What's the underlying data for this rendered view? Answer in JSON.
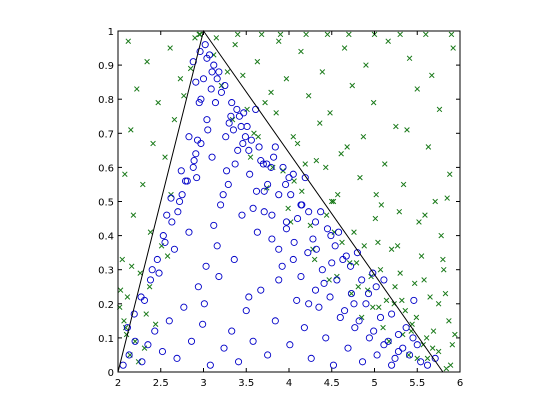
{
  "chart_data": {
    "type": "scatter",
    "title": "",
    "xlabel": "",
    "ylabel": "",
    "xlim": [
      2,
      6
    ],
    "ylim": [
      0,
      1
    ],
    "grid": false,
    "legend": "none",
    "x_ticks": [
      "2",
      "2.5",
      "3",
      "3.5",
      "4",
      "4.5",
      "5",
      "5.5",
      "6"
    ],
    "y_ticks": [
      "0",
      "0.1",
      "0.2",
      "0.3",
      "0.4",
      "0.5",
      "0.6",
      "0.7",
      "0.8",
      "0.9",
      "1"
    ],
    "x_tick_values": [
      2,
      2.5,
      3,
      3.5,
      4,
      4.5,
      5,
      5.5,
      6
    ],
    "y_tick_values": [
      0,
      0.1,
      0.2,
      0.3,
      0.4,
      0.5,
      0.6,
      0.7,
      0.8,
      0.9,
      1
    ],
    "boundary": {
      "color": "#000000",
      "x": [
        2,
        3,
        5.8
      ],
      "y": [
        0,
        1,
        0
      ]
    },
    "series": [
      {
        "marker": "x",
        "color": "#1a7a1a",
        "region": "outside triangle",
        "x": [
          2.12,
          2.34,
          2.61,
          2.85,
          2.22,
          2.47,
          2.73,
          2.15,
          2.41,
          2.66,
          2.08,
          2.29,
          2.55,
          2.18,
          2.38,
          2.9,
          3.12,
          3.37,
          3.63,
          3.88,
          4.14,
          4.39,
          4.65,
          4.9,
          5.16,
          5.41,
          5.67,
          5.92,
          3.21,
          3.46,
          3.72,
          3.97,
          4.23,
          4.48,
          4.74,
          4.99,
          5.25,
          5.5,
          5.76,
          3.34,
          3.59,
          3.85,
          4.1,
          4.36,
          4.61,
          4.87,
          5.12,
          5.38,
          5.63,
          5.88,
          3.55,
          3.81,
          4.06,
          4.32,
          4.57,
          4.83,
          5.08,
          5.34,
          5.59,
          5.85,
          3.74,
          3.99,
          4.25,
          4.5,
          4.76,
          5.01,
          5.27,
          5.52,
          5.78,
          4.02,
          4.28,
          4.53,
          4.79,
          5.04,
          5.3,
          5.55,
          5.81,
          4.3,
          4.56,
          4.81,
          5.07,
          5.32,
          5.58,
          5.83,
          4.47,
          4.73,
          4.98,
          5.24,
          5.49,
          5.75,
          4.85,
          5.1,
          5.36,
          5.61,
          5.87,
          5.17,
          5.43,
          5.68,
          5.94,
          5.5,
          5.75,
          5.89,
          2.05,
          2.26,
          2.51,
          2.77,
          2.11,
          2.37,
          2.62,
          2.09,
          2.33,
          2.58,
          2.2,
          2.44,
          2.14,
          2.31,
          2.03,
          2.24,
          2.07,
          2.16,
          2.02,
          2.1,
          2.96,
          3.28,
          3.51,
          3.79,
          4.05,
          4.43,
          4.68,
          5.02,
          5.29,
          5.71,
          3.64,
          3.93,
          4.19,
          4.52,
          4.88,
          5.2,
          5.47,
          5.8,
          4.15,
          4.44,
          4.71,
          4.96,
          5.23,
          5.65,
          4.62,
          4.92,
          5.14,
          5.44,
          5.69,
          5.05,
          5.33,
          5.57,
          5.91,
          5.4,
          5.62,
          5.84,
          2.95,
          3.15,
          3.4,
          3.68,
          3.9,
          4.2,
          4.45,
          4.7,
          5.0,
          5.3,
          5.6,
          5.9
        ],
        "y": [
          0.97,
          0.91,
          0.95,
          0.89,
          0.83,
          0.79,
          0.86,
          0.71,
          0.67,
          0.74,
          0.58,
          0.55,
          0.63,
          0.46,
          0.41,
          0.98,
          0.93,
          0.96,
          0.91,
          0.97,
          0.94,
          0.88,
          0.95,
          0.9,
          0.97,
          0.92,
          0.87,
          0.95,
          0.84,
          0.87,
          0.79,
          0.86,
          0.81,
          0.76,
          0.84,
          0.79,
          0.72,
          0.83,
          0.77,
          0.74,
          0.7,
          0.76,
          0.67,
          0.73,
          0.64,
          0.69,
          0.61,
          0.71,
          0.66,
          0.58,
          0.63,
          0.6,
          0.56,
          0.62,
          0.52,
          0.57,
          0.49,
          0.55,
          0.46,
          0.51,
          0.54,
          0.48,
          0.43,
          0.5,
          0.41,
          0.45,
          0.37,
          0.44,
          0.4,
          0.44,
          0.36,
          0.41,
          0.32,
          0.38,
          0.29,
          0.34,
          0.3,
          0.33,
          0.28,
          0.25,
          0.3,
          0.21,
          0.27,
          0.23,
          0.27,
          0.23,
          0.19,
          0.25,
          0.16,
          0.2,
          0.16,
          0.13,
          0.18,
          0.1,
          0.15,
          0.09,
          0.12,
          0.07,
          0.11,
          0.04,
          0.06,
          0.02,
          0.33,
          0.29,
          0.37,
          0.81,
          0.22,
          0.25,
          0.52,
          0.13,
          0.17,
          0.34,
          0.09,
          0.14,
          0.05,
          0.07,
          0.24,
          0.03,
          0.15,
          0.31,
          0.19,
          0.11,
          0.99,
          0.88,
          0.77,
          0.82,
          0.69,
          0.6,
          0.66,
          0.52,
          0.47,
          0.5,
          0.69,
          0.59,
          0.61,
          0.5,
          0.37,
          0.36,
          0.26,
          0.33,
          0.53,
          0.46,
          0.32,
          0.28,
          0.2,
          0.22,
          0.38,
          0.24,
          0.21,
          0.14,
          0.12,
          0.19,
          0.11,
          0.08,
          0.08,
          0.05,
          0.04,
          0.01,
          0.99,
          0.98,
          0.99,
          0.99,
          0.99,
          0.99,
          0.99,
          0.99,
          0.99,
          0.99,
          0.99,
          0.99
        ]
      },
      {
        "marker": "o",
        "color": "#0000c8",
        "region": "inside triangle",
        "x": [
          2.06,
          2.13,
          2.2,
          2.11,
          2.28,
          2.35,
          2.19,
          2.43,
          2.27,
          2.52,
          2.38,
          2.6,
          2.46,
          2.69,
          2.55,
          2.77,
          2.63,
          2.86,
          2.72,
          2.94,
          2.81,
          2.99,
          2.89,
          3.03,
          2.93,
          2.97,
          3.08,
          3.16,
          3.04,
          3.24,
          3.12,
          3.33,
          3.2,
          3.41,
          3.29,
          3.5,
          3.37,
          3.58,
          3.46,
          3.67,
          3.54,
          3.75,
          3.63,
          3.84,
          3.71,
          3.92,
          3.8,
          4.01,
          3.88,
          4.09,
          3.97,
          4.18,
          4.05,
          4.26,
          4.14,
          4.35,
          4.22,
          4.43,
          4.31,
          4.52,
          4.39,
          4.6,
          4.48,
          4.69,
          4.56,
          4.77,
          4.65,
          4.86,
          4.73,
          4.94,
          4.82,
          5.03,
          4.9,
          5.11,
          4.99,
          5.2,
          5.07,
          5.28,
          5.16,
          5.37,
          5.24,
          5.45,
          5.33,
          5.54,
          5.41,
          5.62,
          5.5,
          5.71,
          2.31,
          2.48,
          2.66,
          2.83,
          3.01,
          3.18,
          3.36,
          3.53,
          3.71,
          3.88,
          4.06,
          4.23,
          4.41,
          4.58,
          4.76,
          4.93,
          5.11,
          5.28,
          5.46,
          2.4,
          2.57,
          2.75,
          2.92,
          3.1,
          3.27,
          3.45,
          3.62,
          3.8,
          3.97,
          4.15,
          4.32,
          4.5,
          4.67,
          4.85,
          5.02,
          5.2,
          2.53,
          2.7,
          2.88,
          3.05,
          3.23,
          3.4,
          3.58,
          3.75,
          3.93,
          4.1,
          4.28,
          4.45,
          4.63,
          4.8,
          4.98,
          2.62,
          2.79,
          2.97,
          3.14,
          3.32,
          3.49,
          3.67,
          3.84,
          4.02,
          4.19,
          4.37,
          4.54,
          4.72,
          2.74,
          2.91,
          3.09,
          3.26,
          3.44,
          3.61,
          3.79,
          3.96,
          4.14,
          4.31,
          4.49,
          2.83,
          3.0,
          3.18,
          3.35,
          3.53,
          3.7,
          3.88,
          4.05,
          4.23,
          2.95,
          3.12,
          3.3,
          3.47,
          3.65,
          3.82,
          4.0,
          3.04,
          3.21,
          3.39,
          3.56,
          3.74,
          3.16,
          3.33,
          3.51,
          3.25,
          3.42,
          2.88,
          2.96,
          3.02,
          3.07,
          2.91,
          3.1
        ],
        "y": [
          0.02,
          0.05,
          0.09,
          0.13,
          0.03,
          0.08,
          0.17,
          0.12,
          0.22,
          0.06,
          0.27,
          0.15,
          0.33,
          0.04,
          0.38,
          0.19,
          0.44,
          0.09,
          0.5,
          0.25,
          0.56,
          0.14,
          0.62,
          0.31,
          0.68,
          0.8,
          0.02,
          0.37,
          0.74,
          0.07,
          0.43,
          0.12,
          0.49,
          0.03,
          0.55,
          0.18,
          0.61,
          0.09,
          0.67,
          0.24,
          0.58,
          0.05,
          0.41,
          0.15,
          0.53,
          0.31,
          0.46,
          0.08,
          0.36,
          0.21,
          0.42,
          0.13,
          0.33,
          0.04,
          0.28,
          0.19,
          0.35,
          0.1,
          0.24,
          0.02,
          0.3,
          0.16,
          0.22,
          0.07,
          0.27,
          0.13,
          0.18,
          0.03,
          0.23,
          0.1,
          0.15,
          0.05,
          0.2,
          0.08,
          0.12,
          0.02,
          0.16,
          0.06,
          0.09,
          0.13,
          0.04,
          0.1,
          0.07,
          0.03,
          0.05,
          0.02,
          0.08,
          0.04,
          0.21,
          0.29,
          0.36,
          0.41,
          0.2,
          0.28,
          0.33,
          0.22,
          0.47,
          0.27,
          0.38,
          0.2,
          0.26,
          0.41,
          0.2,
          0.23,
          0.27,
          0.11,
          0.21,
          0.3,
          0.46,
          0.52,
          0.57,
          0.63,
          0.59,
          0.46,
          0.53,
          0.39,
          0.44,
          0.49,
          0.36,
          0.32,
          0.34,
          0.27,
          0.25,
          0.17,
          0.4,
          0.47,
          0.6,
          0.71,
          0.52,
          0.65,
          0.48,
          0.55,
          0.6,
          0.45,
          0.39,
          0.42,
          0.33,
          0.35,
          0.29,
          0.51,
          0.56,
          0.67,
          0.79,
          0.75,
          0.69,
          0.62,
          0.66,
          0.52,
          0.57,
          0.47,
          0.37,
          0.31,
          0.59,
          0.64,
          0.83,
          0.69,
          0.72,
          0.77,
          0.6,
          0.55,
          0.49,
          0.44,
          0.4,
          0.69,
          0.86,
          0.88,
          0.71,
          0.65,
          0.61,
          0.52,
          0.58,
          0.47,
          0.79,
          0.9,
          0.73,
          0.76,
          0.66,
          0.63,
          0.57,
          0.92,
          0.82,
          0.77,
          0.68,
          0.61,
          0.86,
          0.79,
          0.72,
          0.84,
          0.75,
          0.91,
          0.94,
          0.96,
          0.93,
          0.85,
          0.88
        ]
      }
    ]
  }
}
